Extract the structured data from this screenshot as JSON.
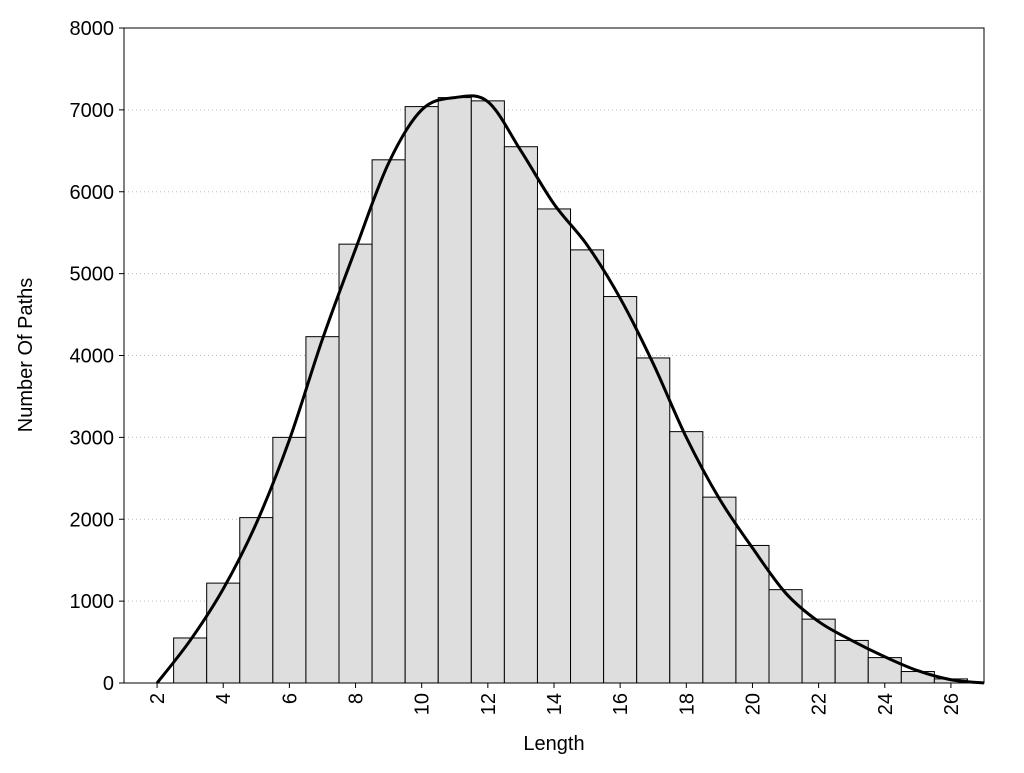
{
  "chart_data": {
    "type": "histogram",
    "x_label": "Length",
    "y_label": "Number Of Paths",
    "bins": [
      2.5,
      3.5,
      4.5,
      5.5,
      6.5,
      7.5,
      8.5,
      9.5,
      10.5,
      11.5,
      12.5,
      13.5,
      14.5,
      15.5,
      16.5,
      17.5,
      18.5,
      19.5,
      20.5,
      21.5,
      22.5,
      23.5,
      24.5,
      25.5,
      26.5
    ],
    "counts": [
      550,
      1220,
      2020,
      3000,
      4230,
      5360,
      6390,
      7040,
      7150,
      7110,
      6550,
      5790,
      5290,
      4720,
      3970,
      3070,
      2270,
      1680,
      1140,
      780,
      520,
      310,
      140,
      50
    ],
    "color": "#dedede",
    "edge_color": "#000000",
    "curve": {
      "x": [
        2,
        3,
        4,
        5,
        6,
        7,
        8,
        9,
        10,
        11,
        12,
        13,
        14,
        15,
        16,
        17,
        18,
        19,
        20,
        21,
        22,
        23,
        24,
        25,
        26,
        27
      ],
      "y": [
        0,
        520,
        1150,
        1950,
        2970,
        4200,
        5300,
        6350,
        7000,
        7150,
        7100,
        6500,
        5850,
        5350,
        4700,
        3900,
        3000,
        2250,
        1650,
        1100,
        750,
        520,
        320,
        150,
        40,
        0
      ],
      "color": "#000000"
    },
    "xlim": [
      1,
      27
    ],
    "xticks": [
      2,
      4,
      6,
      8,
      10,
      12,
      14,
      16,
      18,
      20,
      22,
      24,
      26
    ],
    "ylim": [
      0,
      8000
    ],
    "yticks": [
      0,
      1000,
      2000,
      3000,
      4000,
      5000,
      6000,
      7000,
      8000
    ],
    "grid": true
  }
}
